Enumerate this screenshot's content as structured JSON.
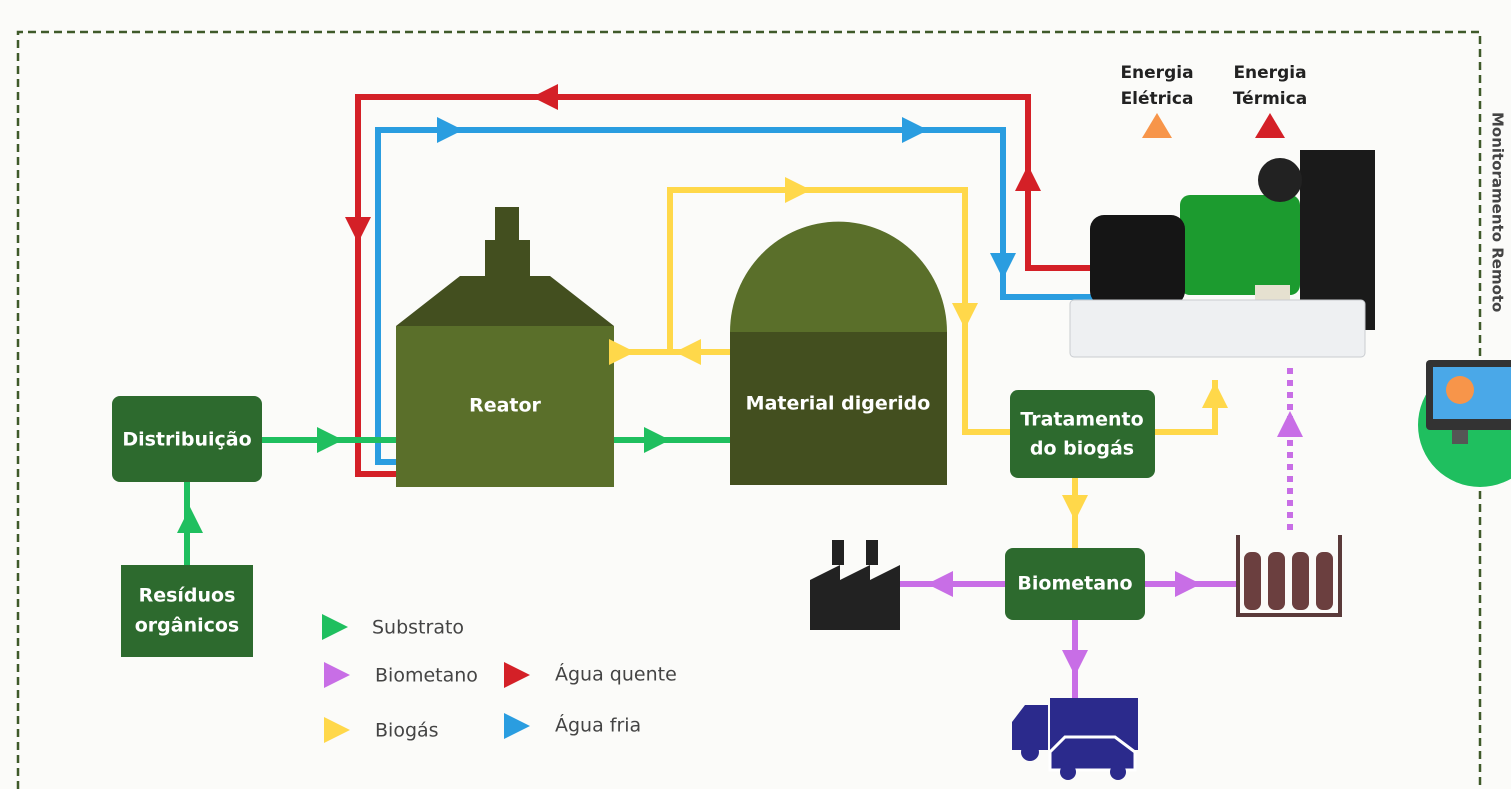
{
  "nodes": {
    "distribuicao": "Distribuição",
    "residuos": [
      "Resíduos",
      "orgânicos"
    ],
    "reator": "Reator",
    "material": "Material digerido",
    "tratamento": [
      "Tratamento",
      "do biogás"
    ],
    "biometano": "Biometano"
  },
  "outputs": {
    "eletrica": [
      "Energia",
      "Elétrica"
    ],
    "termica": [
      "Energia",
      "Térmica"
    ]
  },
  "side_label": "Monitoramento Remoto",
  "legend": [
    "Substrato",
    "Biometano",
    "Biogás",
    "Água quente",
    "Água fria"
  ]
}
